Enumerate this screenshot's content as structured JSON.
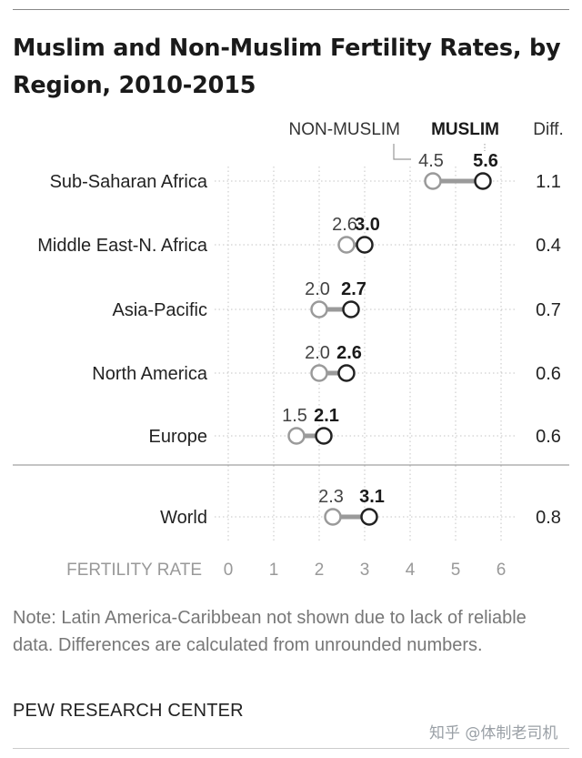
{
  "title": "Muslim and Non-Muslim Fertility Rates, by Region, 2010-2015",
  "note": "Note: Latin America-Caribbean not shown due to lack of reliable data. Differences are calculated from unrounded numbers.",
  "source": "PEW RESEARCH CENTER",
  "watermark": "知乎 @体制老司机",
  "colors": {
    "muslim": "#222222",
    "non_muslim": "#9a9a9a",
    "connector": "#9a9a9a"
  },
  "chart_data": {
    "type": "dot",
    "legend": {
      "non_muslim": "NON-MUSLIM",
      "muslim": "MUSLIM"
    },
    "diff_header": "Diff.",
    "xlabel": "FERTILITY RATE",
    "xlim": [
      0,
      6
    ],
    "ticks": [
      0,
      1,
      2,
      3,
      4,
      5,
      6
    ],
    "grid": "dotted",
    "categories": [
      "Sub-Saharan Africa",
      "Middle East-N. Africa",
      "Asia-Pacific",
      "North America",
      "Europe",
      "World"
    ],
    "series": [
      {
        "name": "NON-MUSLIM",
        "values": [
          4.5,
          2.6,
          2.0,
          2.0,
          1.5,
          2.3
        ]
      },
      {
        "name": "MUSLIM",
        "values": [
          5.6,
          3.0,
          2.7,
          2.6,
          2.1,
          3.1
        ]
      }
    ],
    "value_labels": {
      "NON-MUSLIM": [
        "4.5",
        "2.6",
        "2.0",
        "2.0",
        "1.5",
        "2.3"
      ],
      "MUSLIM": [
        "5.6",
        "3.0",
        "2.7",
        "2.6",
        "2.1",
        "3.1"
      ]
    },
    "diff": [
      "1.1",
      "0.4",
      "0.7",
      "0.6",
      "0.6",
      "0.8"
    ]
  }
}
